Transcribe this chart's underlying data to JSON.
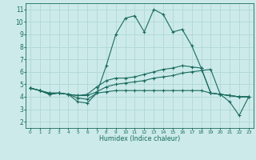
{
  "xlabel": "Humidex (Indice chaleur)",
  "bg_color": "#cceaea",
  "line_color": "#1a6b5e",
  "grid_color": "#b0d8d8",
  "xlim": [
    -0.5,
    23.5
  ],
  "ylim": [
    1.5,
    11.5
  ],
  "xticks": [
    0,
    1,
    2,
    3,
    4,
    5,
    6,
    7,
    8,
    9,
    10,
    11,
    12,
    13,
    14,
    15,
    16,
    17,
    18,
    19,
    20,
    21,
    22,
    23
  ],
  "yticks": [
    2,
    3,
    4,
    5,
    6,
    7,
    8,
    9,
    10,
    11
  ],
  "series": [
    [
      4.7,
      4.5,
      4.2,
      4.3,
      4.2,
      3.6,
      3.5,
      4.3,
      6.5,
      9.0,
      10.3,
      10.5,
      9.2,
      11.0,
      10.6,
      9.2,
      9.4,
      8.1,
      6.3,
      4.3,
      4.2,
      3.6,
      2.5,
      4.0
    ],
    [
      4.7,
      4.5,
      4.3,
      4.3,
      4.2,
      4.1,
      4.1,
      4.4,
      4.8,
      5.0,
      5.1,
      5.2,
      5.3,
      5.5,
      5.6,
      5.7,
      5.9,
      6.0,
      6.1,
      6.2,
      4.2,
      4.1,
      4.0,
      4.0
    ],
    [
      4.7,
      4.5,
      4.3,
      4.3,
      4.2,
      4.1,
      4.2,
      4.8,
      5.3,
      5.5,
      5.5,
      5.6,
      5.8,
      6.0,
      6.2,
      6.3,
      6.5,
      6.4,
      6.3,
      4.3,
      4.2,
      4.1,
      4.0,
      4.0
    ],
    [
      4.7,
      4.5,
      4.2,
      4.3,
      4.2,
      3.9,
      3.8,
      4.3,
      4.4,
      4.5,
      4.5,
      4.5,
      4.5,
      4.5,
      4.5,
      4.5,
      4.5,
      4.5,
      4.5,
      4.3,
      4.2,
      4.1,
      4.0,
      4.0
    ]
  ]
}
